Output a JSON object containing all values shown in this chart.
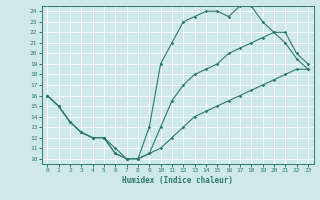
{
  "xlabel": "Humidex (Indice chaleur)",
  "bg_color": "#cfe9e9",
  "line_color": "#2d7a6a",
  "grid_color": "#ffffff",
  "xlim": [
    -0.5,
    23.5
  ],
  "ylim": [
    9.5,
    24.5
  ],
  "x_ticks": [
    0,
    1,
    2,
    3,
    4,
    5,
    6,
    7,
    8,
    9,
    10,
    11,
    12,
    13,
    14,
    15,
    16,
    17,
    18,
    19,
    20,
    21,
    22,
    23
  ],
  "y_ticks": [
    10,
    11,
    12,
    13,
    14,
    15,
    16,
    17,
    18,
    19,
    20,
    21,
    22,
    23,
    24
  ],
  "line1_x": [
    0,
    1,
    2,
    3,
    4,
    5,
    6,
    7,
    8,
    9,
    10,
    11,
    12,
    13,
    14,
    15,
    16,
    17,
    18,
    19,
    20,
    21,
    22,
    23
  ],
  "line1_y": [
    16,
    15,
    13.5,
    12.5,
    12,
    12,
    11,
    10,
    10,
    13,
    19,
    21,
    23,
    23.5,
    24,
    24,
    23.5,
    24.5,
    24.5,
    23,
    22,
    21,
    19.5,
    18.5
  ],
  "line2_x": [
    0,
    1,
    2,
    3,
    4,
    5,
    6,
    7,
    8,
    9,
    10,
    11,
    12,
    13,
    14,
    15,
    16,
    17,
    18,
    19,
    20,
    21,
    22,
    23
  ],
  "line2_y": [
    16,
    15,
    13.5,
    12.5,
    12,
    12,
    10.5,
    10,
    10,
    10.5,
    11,
    12,
    13,
    14,
    14.5,
    15,
    15.5,
    16,
    16.5,
    17,
    17.5,
    18,
    18.5,
    18.5
  ],
  "line3_x": [
    0,
    1,
    2,
    3,
    4,
    5,
    6,
    7,
    8,
    9,
    10,
    11,
    12,
    13,
    14,
    15,
    16,
    17,
    18,
    19,
    20,
    21,
    22,
    23
  ],
  "line3_y": [
    16,
    15,
    13.5,
    12.5,
    12,
    12,
    10.5,
    10,
    10,
    10.5,
    13,
    15.5,
    17,
    18,
    18.5,
    19,
    20,
    20.5,
    21,
    21.5,
    22,
    22,
    20,
    19
  ]
}
